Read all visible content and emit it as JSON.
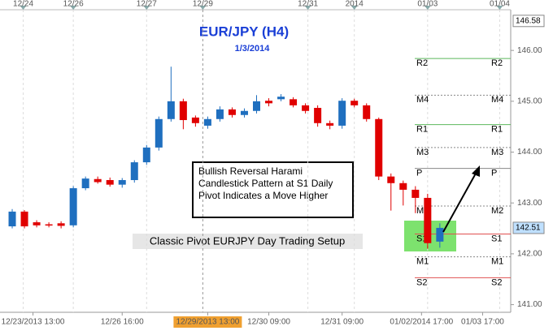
{
  "chart_data": {
    "type": "candlestick",
    "title": "EUR/JPY (H4)",
    "subtitle": "1/3/2014",
    "annotation": "Bullish Reversal  Harami Candlestick Pattern  at S1 Daily Pivot Indicates a Move Higher",
    "setup_label": "Classic Pivot EURJPY Day Trading Setup",
    "up_color": "#1f6fbf",
    "down_color": "#e00000",
    "xlim": [
      -1,
      40.8
    ],
    "ylim": [
      140.85,
      146.8
    ],
    "yticks": [
      {
        "value": 141,
        "label": "141.00"
      },
      {
        "value": 142,
        "label": "142.00"
      },
      {
        "value": 143,
        "label": "143.00"
      },
      {
        "value": 144,
        "label": "144.00"
      },
      {
        "value": 145,
        "label": "145.00"
      },
      {
        "value": 146,
        "label": "146.00"
      }
    ],
    "top_xticks": [
      {
        "value": 0.9,
        "label": "12/24"
      },
      {
        "value": 5,
        "label": "12/26"
      },
      {
        "value": 11,
        "label": "12/27"
      },
      {
        "value": 15.6,
        "label": "12/29"
      },
      {
        "value": 24.2,
        "label": "12/31"
      },
      {
        "value": 28,
        "label": "2014"
      },
      {
        "value": 34,
        "label": "01/03"
      },
      {
        "value": 39.9,
        "label": "01/04"
      }
    ],
    "bottom_xticks": [
      {
        "value": 1.7,
        "label": "12/23/2013 13:00"
      },
      {
        "value": 9,
        "label": "12/26 16:00"
      },
      {
        "value": 16,
        "label": "12/29/2013 13:00"
      },
      {
        "value": 21,
        "label": "12/30 09:00"
      },
      {
        "value": 27,
        "label": "12/31 09:00"
      },
      {
        "value": 33.5,
        "label": "01/02/2014 17:00"
      },
      {
        "value": 38.5,
        "label": "01/03 17:00"
      }
    ],
    "price_labels": [
      {
        "value": 146.58,
        "color": "#ffffff"
      },
      {
        "value": 142.51,
        "color": "#bfe0ff"
      }
    ],
    "pivots": [
      {
        "name": "R2",
        "value": 145.84,
        "color": "#5cb85c",
        "dash": false
      },
      {
        "name": "M4",
        "value": 145.12,
        "color": "#888888",
        "dash": true
      },
      {
        "name": "R1",
        "value": 144.54,
        "color": "#5cb85c",
        "dash": false
      },
      {
        "name": "M3",
        "value": 144.09,
        "color": "#888888",
        "dash": true
      },
      {
        "name": "P",
        "value": 143.68,
        "color": "#888888",
        "dash": false
      },
      {
        "name": "M2",
        "value": 142.94,
        "color": "#888888",
        "dash": true
      },
      {
        "name": "S1",
        "value": 142.39,
        "color": "#e05050",
        "dash": false
      },
      {
        "name": "M1",
        "value": 141.94,
        "color": "#888888",
        "dash": true
      },
      {
        "name": "S2",
        "value": 141.53,
        "color": "#e05050",
        "dash": false
      }
    ],
    "open": [
      142.54,
      142.83,
      142.62,
      142.58,
      142.6,
      142.56,
      143.29,
      143.47,
      143.45,
      143.36,
      143.45,
      143.8,
      144.09,
      144.65,
      145.0,
      144.68,
      144.52,
      144.65,
      144.84,
      144.73,
      144.81,
      145.01,
      145.04,
      145.04,
      144.92,
      144.87,
      144.57,
      144.52,
      145.01,
      144.92,
      144.65,
      143.52,
      143.39,
      143.26,
      143.1,
      142.24
    ],
    "high": [
      142.88,
      142.86,
      142.66,
      142.62,
      142.64,
      143.33,
      143.52,
      143.52,
      143.5,
      143.49,
      143.84,
      144.14,
      144.7,
      145.68,
      145.05,
      144.72,
      144.7,
      144.9,
      144.88,
      144.86,
      145.12,
      145.06,
      145.14,
      145.08,
      144.96,
      144.92,
      144.62,
      145.06,
      145.05,
      144.96,
      144.68,
      143.58,
      143.44,
      143.33,
      143.18,
      142.6
    ],
    "low": [
      142.5,
      142.5,
      142.52,
      142.52,
      142.5,
      142.52,
      143.25,
      143.38,
      143.32,
      143.3,
      143.4,
      143.75,
      144.03,
      144.6,
      144.45,
      144.5,
      144.46,
      144.6,
      144.68,
      144.68,
      144.76,
      144.9,
      145.0,
      144.88,
      144.76,
      144.5,
      144.45,
      144.46,
      144.88,
      144.6,
      143.45,
      142.85,
      142.95,
      142.8,
      142.1,
      142.12
    ],
    "close": [
      142.83,
      142.54,
      142.56,
      142.56,
      142.55,
      143.29,
      143.48,
      143.41,
      143.36,
      143.45,
      143.8,
      144.09,
      144.65,
      145.0,
      144.63,
      144.57,
      144.65,
      144.84,
      144.73,
      144.81,
      145.0,
      144.96,
      145.09,
      144.92,
      144.81,
      144.57,
      144.52,
      145.01,
      144.92,
      144.65,
      143.52,
      143.39,
      143.26,
      143.1,
      142.21,
      142.51
    ]
  }
}
